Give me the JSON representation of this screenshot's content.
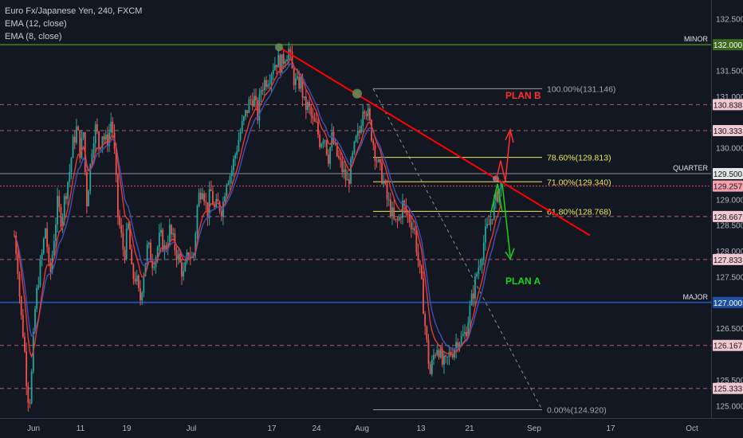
{
  "legend": {
    "symbol_line": "Euro Fx/Japanese Yen, 240, FXCM",
    "ema1": "EMA (12, close)",
    "ema2": "EMA (8, close)"
  },
  "colors": {
    "background": "#131722",
    "up_candle": "#26a69a",
    "down_candle": "#ef5350",
    "ema_fast": "#e53935",
    "ema_slow": "#3f51b5",
    "trendline": "#ff0000",
    "fib": "#e8e85a",
    "major_line": "#1e4fa0",
    "minor_line": "#3a6b1e",
    "dashed_level": "#b06070",
    "plan_a": "#17d417",
    "plan_b": "#ff2d2d"
  },
  "chart_data": {
    "type": "candlestick",
    "y_axis": {
      "ylim": [
        124.85,
        132.65
      ],
      "ticks": [
        "132.500",
        "131.500",
        "131.000",
        "130.000",
        "129.000",
        "128.500",
        "128.000",
        "127.500",
        "126.500",
        "125.500",
        "125.000"
      ]
    },
    "x_axis": {
      "ticks": [
        "Jun",
        "11",
        "19",
        "Jul",
        "17",
        "24",
        "Aug",
        "13",
        "21",
        "Sep",
        "17",
        "Oct"
      ]
    },
    "price_labels": [
      {
        "value": "132.000",
        "style": "minor"
      },
      {
        "value": "130.838",
        "style": "pink"
      },
      {
        "value": "130.333",
        "style": "pink"
      },
      {
        "value": "129.500",
        "style": "plain"
      },
      {
        "value": "129.257",
        "style": "red"
      },
      {
        "value": "128.667",
        "style": "pink"
      },
      {
        "value": "127.833",
        "style": "pink"
      },
      {
        "value": "127.000",
        "style": "major"
      },
      {
        "value": "126.167",
        "style": "pink"
      },
      {
        "value": "125.333",
        "style": "pink"
      }
    ],
    "levels": [
      {
        "value": 132.0,
        "style": "minor",
        "label": "MINOR"
      },
      {
        "value": 130.838,
        "style": "dashed"
      },
      {
        "value": 130.333,
        "style": "dashed"
      },
      {
        "value": 129.5,
        "style": "plain",
        "label": "QUARTER"
      },
      {
        "value": 129.257,
        "style": "dotted-red"
      },
      {
        "value": 128.667,
        "style": "dashed"
      },
      {
        "value": 127.833,
        "style": "dashed"
      },
      {
        "value": 127.0,
        "style": "major",
        "label": "MAJOR"
      },
      {
        "value": 126.167,
        "style": "dashed"
      },
      {
        "value": 125.333,
        "style": "dashed"
      }
    ],
    "fib_levels": [
      {
        "label": "100.00%(131.146)",
        "value": 131.146,
        "color": "gray"
      },
      {
        "label": "78.60%(129.813)",
        "value": 129.813,
        "color": "yellow"
      },
      {
        "label": "71.00%(129.340)",
        "value": 129.34,
        "color": "yellow"
      },
      {
        "label": "61.80%(128.768)",
        "value": 128.768,
        "color": "yellow"
      },
      {
        "label": "0.00%(124.920)",
        "value": 124.92,
        "color": "gray"
      }
    ],
    "annotations": {
      "plan_a": "PLAN A",
      "plan_b": "PLAN B"
    },
    "price_path": [
      [
        0,
        128.3
      ],
      [
        4,
        127.8
      ],
      [
        8,
        126.8
      ],
      [
        12,
        126.3
      ],
      [
        16,
        125.4
      ],
      [
        19,
        125.0
      ],
      [
        22,
        125.6
      ],
      [
        26,
        126.8
      ],
      [
        30,
        127.4
      ],
      [
        35,
        127.9
      ],
      [
        40,
        128.5
      ],
      [
        45,
        127.4
      ],
      [
        50,
        128.2
      ],
      [
        55,
        128.9
      ],
      [
        60,
        128.6
      ],
      [
        65,
        129.1
      ],
      [
        70,
        129.5
      ],
      [
        75,
        130.1
      ],
      [
        80,
        130.4
      ],
      [
        84,
        129.9
      ],
      [
        88,
        130.3
      ],
      [
        92,
        128.9
      ],
      [
        96,
        129.5
      ],
      [
        100,
        130.2
      ],
      [
        104,
        130.4
      ],
      [
        108,
        130.0
      ],
      [
        112,
        130.3
      ],
      [
        116,
        130.1
      ],
      [
        120,
        130.2
      ],
      [
        124,
        130.6
      ],
      [
        128,
        129.8
      ],
      [
        132,
        128.7
      ],
      [
        136,
        128.3
      ],
      [
        140,
        127.9
      ],
      [
        145,
        128.5
      ],
      [
        150,
        127.5
      ],
      [
        155,
        127.5
      ],
      [
        160,
        127.0
      ],
      [
        165,
        127.6
      ],
      [
        170,
        128.1
      ],
      [
        176,
        127.8
      ],
      [
        180,
        127.9
      ],
      [
        186,
        128.3
      ],
      [
        192,
        128.0
      ],
      [
        198,
        128.4
      ],
      [
        204,
        128.1
      ],
      [
        210,
        127.8
      ],
      [
        216,
        127.5
      ],
      [
        222,
        128.0
      ],
      [
        228,
        127.8
      ],
      [
        234,
        129.0
      ],
      [
        240,
        129.3
      ],
      [
        246,
        128.7
      ],
      [
        250,
        129.2
      ],
      [
        255,
        128.8
      ],
      [
        260,
        128.9
      ],
      [
        265,
        128.8
      ],
      [
        270,
        129.4
      ],
      [
        276,
        129.5
      ],
      [
        282,
        129.9
      ],
      [
        288,
        130.3
      ],
      [
        294,
        130.6
      ],
      [
        300,
        130.9
      ],
      [
        305,
        131.0
      ],
      [
        310,
        130.6
      ],
      [
        315,
        131.2
      ],
      [
        320,
        131.3
      ],
      [
        325,
        131.4
      ],
      [
        330,
        131.6
      ],
      [
        335,
        131.7
      ],
      [
        340,
        131.6
      ],
      [
        345,
        131.8
      ],
      [
        350,
        131.9
      ],
      [
        355,
        131.4
      ],
      [
        360,
        131.2
      ],
      [
        365,
        131.3
      ],
      [
        370,
        130.8
      ],
      [
        375,
        130.8
      ],
      [
        380,
        130.5
      ],
      [
        385,
        130.4
      ],
      [
        390,
        130.1
      ],
      [
        395,
        130.3
      ],
      [
        400,
        129.8
      ],
      [
        405,
        130.2
      ],
      [
        410,
        129.9
      ],
      [
        415,
        129.7
      ],
      [
        420,
        129.5
      ],
      [
        425,
        129.3
      ],
      [
        430,
        129.7
      ],
      [
        435,
        130.1
      ],
      [
        440,
        130.3
      ],
      [
        445,
        130.9
      ],
      [
        450,
        130.7
      ],
      [
        455,
        130.3
      ],
      [
        460,
        129.9
      ],
      [
        465,
        129.6
      ],
      [
        470,
        129.4
      ],
      [
        475,
        129.0
      ],
      [
        480,
        128.8
      ],
      [
        485,
        128.5
      ],
      [
        490,
        128.6
      ],
      [
        495,
        128.9
      ],
      [
        500,
        128.7
      ],
      [
        505,
        128.6
      ],
      [
        510,
        128.4
      ],
      [
        515,
        127.8
      ],
      [
        520,
        127.2
      ],
      [
        525,
        126.3
      ],
      [
        530,
        125.6
      ],
      [
        535,
        126.0
      ],
      [
        540,
        126.2
      ],
      [
        545,
        125.8
      ],
      [
        550,
        125.8
      ],
      [
        555,
        126.0
      ],
      [
        560,
        126.1
      ],
      [
        565,
        126.3
      ],
      [
        570,
        126.3
      ],
      [
        575,
        126.4
      ],
      [
        580,
        126.8
      ],
      [
        585,
        127.2
      ],
      [
        590,
        127.6
      ],
      [
        595,
        127.9
      ],
      [
        600,
        128.3
      ],
      [
        605,
        128.5
      ],
      [
        610,
        128.8
      ],
      [
        614,
        129.0
      ],
      [
        618,
        129.2
      ],
      [
        622,
        129.3
      ]
    ]
  }
}
